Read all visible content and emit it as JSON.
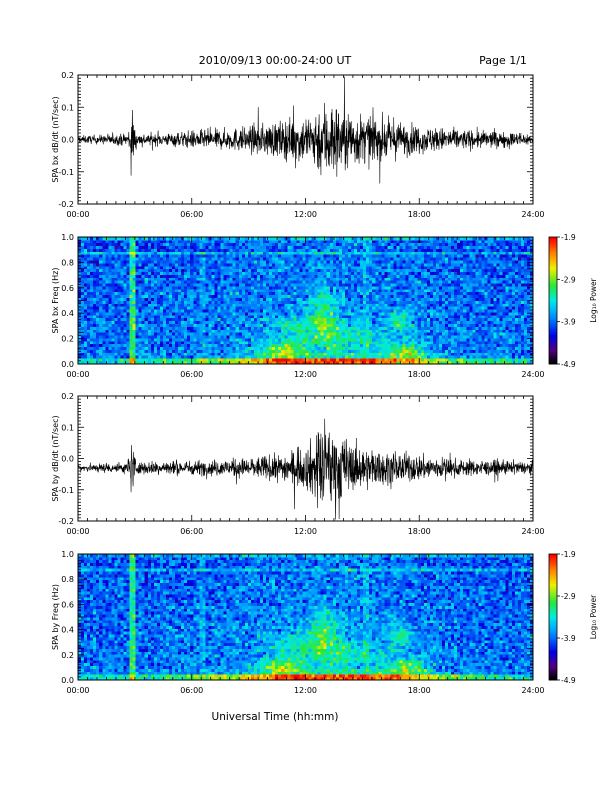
{
  "header": {
    "date_range": "2010/09/13  00:00-24:00 UT",
    "page": "Page 1/1"
  },
  "xaxis": {
    "title": "Universal Time (hh:mm)",
    "ticks": [
      "00:00",
      "06:00",
      "12:00",
      "18:00",
      "24:00"
    ],
    "range_hours": [
      0,
      24
    ]
  },
  "chart_data": [
    {
      "type": "line",
      "ylabel": "SPA bx dB/dt (nT/sec)",
      "ylim": [
        -0.2,
        0.2
      ],
      "yticks": [
        "0.2",
        "0.1",
        "0.0",
        "-0.1",
        "-0.2"
      ],
      "ytick_values": [
        0.2,
        0.1,
        0.0,
        -0.1,
        -0.2
      ],
      "offset": 0.0,
      "envelope": [
        {
          "t": 0,
          "amp": 0.012
        },
        {
          "t": 2.6,
          "amp": 0.02
        },
        {
          "t": 2.85,
          "amp": 0.1
        },
        {
          "t": 3.1,
          "amp": 0.02
        },
        {
          "t": 4.5,
          "amp": 0.02
        },
        {
          "t": 6,
          "amp": 0.03
        },
        {
          "t": 8,
          "amp": 0.035
        },
        {
          "t": 9,
          "amp": 0.045
        },
        {
          "t": 10.5,
          "amp": 0.06
        },
        {
          "t": 12,
          "amp": 0.08
        },
        {
          "t": 13.2,
          "amp": 0.14
        },
        {
          "t": 14.5,
          "amp": 0.09
        },
        {
          "t": 16,
          "amp": 0.07
        },
        {
          "t": 18,
          "amp": 0.045
        },
        {
          "t": 20,
          "amp": 0.035
        },
        {
          "t": 24,
          "amp": 0.02
        }
      ]
    },
    {
      "type": "heatmap",
      "ylabel": "SPA bx Freq (Hz)",
      "ylim": [
        0,
        1.0
      ],
      "yticks": [
        "1.0",
        "0.8",
        "0.6",
        "0.4",
        "0.2",
        "0.0"
      ],
      "ytick_values": [
        1.0,
        0.8,
        0.6,
        0.4,
        0.2,
        0.0
      ],
      "colorbar": {
        "label": "Log₁₀ Power",
        "ticks": [
          "-1.9",
          "-2.9",
          "-3.9",
          "-4.9"
        ],
        "range": [
          -4.9,
          -1.9
        ]
      }
    },
    {
      "type": "line",
      "ylabel": "SPA by dB/dt (nT/sec)",
      "ylim": [
        -0.2,
        0.2
      ],
      "yticks": [
        "0.2",
        "0.1",
        "0.0",
        "-0.1",
        "-0.2"
      ],
      "ytick_values": [
        0.2,
        0.1,
        0.0,
        -0.1,
        -0.2
      ],
      "offset": -0.03,
      "envelope": [
        {
          "t": 0,
          "amp": 0.012
        },
        {
          "t": 2.6,
          "amp": 0.02
        },
        {
          "t": 2.85,
          "amp": 0.1
        },
        {
          "t": 3.1,
          "amp": 0.02
        },
        {
          "t": 4.5,
          "amp": 0.025
        },
        {
          "t": 6,
          "amp": 0.025
        },
        {
          "t": 8,
          "amp": 0.03
        },
        {
          "t": 9,
          "amp": 0.035
        },
        {
          "t": 10.5,
          "amp": 0.045
        },
        {
          "t": 12,
          "amp": 0.07
        },
        {
          "t": 13.0,
          "amp": 0.16
        },
        {
          "t": 14.5,
          "amp": 0.08
        },
        {
          "t": 16,
          "amp": 0.06
        },
        {
          "t": 18,
          "amp": 0.045
        },
        {
          "t": 20,
          "amp": 0.03
        },
        {
          "t": 24,
          "amp": 0.02
        }
      ]
    },
    {
      "type": "heatmap",
      "ylabel": "SPA by Freq (Hz)",
      "ylim": [
        0,
        1.0
      ],
      "yticks": [
        "1.0",
        "0.8",
        "0.6",
        "0.4",
        "0.2",
        "0.0"
      ],
      "ytick_values": [
        1.0,
        0.8,
        0.6,
        0.4,
        0.2,
        0.0
      ],
      "colorbar": {
        "label": "Log₁₀ Power",
        "ticks": [
          "-1.9",
          "-2.9",
          "-3.9",
          "-4.9"
        ],
        "range": [
          -4.9,
          -1.9
        ]
      }
    }
  ]
}
